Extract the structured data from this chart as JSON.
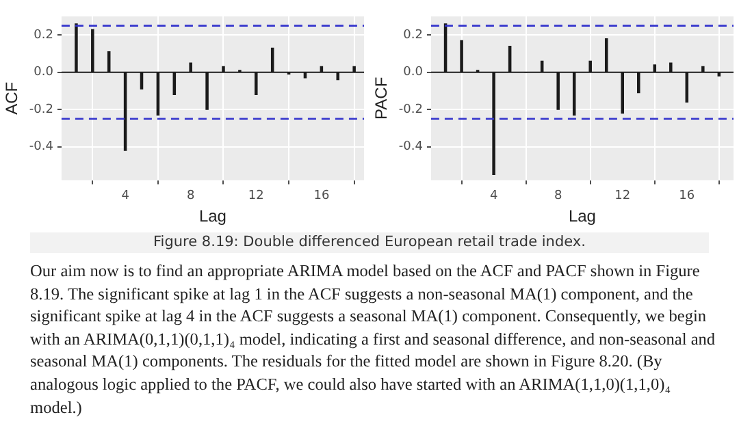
{
  "chart_data": [
    {
      "type": "bar",
      "xlabel": "Lag",
      "ylabel": "ACF",
      "x": [
        1,
        2,
        3,
        4,
        5,
        6,
        7,
        8,
        9,
        10,
        11,
        12,
        13,
        14,
        15,
        16,
        17,
        18
      ],
      "values": [
        0.26,
        0.23,
        0.11,
        -0.42,
        -0.09,
        -0.23,
        -0.12,
        0.05,
        -0.2,
        0.03,
        0.01,
        -0.12,
        0.13,
        -0.01,
        -0.03,
        0.03,
        -0.04,
        0.03
      ],
      "color": "#1a1a1a",
      "xlim": [
        0.1,
        18.6
      ],
      "xticks": [
        4,
        8,
        12,
        16
      ],
      "ylim": [
        -0.58,
        0.3
      ],
      "yticks": [
        -0.4,
        -0.2,
        {
          "value": 0,
          "label": "0.0"
        },
        0.2
      ],
      "grid": true,
      "ref_lines": [
        {
          "axis": "y",
          "value": 0.25,
          "color": "#3333cc",
          "line_style": "dashed"
        },
        {
          "axis": "y",
          "value": -0.25,
          "color": "#3333cc",
          "line_style": "dashed"
        }
      ]
    },
    {
      "type": "bar",
      "xlabel": "Lag",
      "ylabel": "PACF",
      "x": [
        1,
        2,
        3,
        4,
        5,
        6,
        7,
        8,
        9,
        10,
        11,
        12,
        13,
        14,
        15,
        16,
        17,
        18
      ],
      "values": [
        0.26,
        0.17,
        0.01,
        -0.55,
        0.14,
        0,
        0.06,
        -0.2,
        -0.23,
        0.06,
        0.18,
        -0.22,
        -0.11,
        0.04,
        0.05,
        -0.16,
        0.03,
        -0.02
      ],
      "color": "#1a1a1a",
      "xlim": [
        0.1,
        18.9
      ],
      "xticks": [
        4,
        8,
        12,
        16
      ],
      "ylim": [
        -0.58,
        0.3
      ],
      "yticks": [
        -0.4,
        -0.2,
        {
          "value": 0,
          "label": "0.0"
        },
        0.2
      ],
      "grid": true,
      "ref_lines": [
        {
          "axis": "y",
          "value": 0.25,
          "color": "#3333cc",
          "line_style": "dashed"
        },
        {
          "axis": "y",
          "value": -0.25,
          "color": "#3333cc",
          "line_style": "dashed"
        }
      ]
    },
    {
      "type": "other",
      "annotations": [
        "Figure 8.19: Double differenced European retail trade index.",
        "Our aim now is to find an appropriate ARIMA model based on the ACF and PACF shown in Figure 8.19. The significant spike at lag 1 in the ACF suggests a non-seasonal MA(1) component, and the significant spike at lag 4 in the ACF suggests a seasonal MA(1) component. Consequently, we begin with an ARIMA(0,1,1)(0,1,1)₄ model, indicating a first and seasonal difference, and non-seasonal and seasonal MA(1) components. The residuals for the fitted model are shown in Figure 8.20. (By analogous logic applied to the PACF, we could also have started with an ARIMA(1,1,0)(1,1,0)₄ model.)"
      ]
    }
  ]
}
